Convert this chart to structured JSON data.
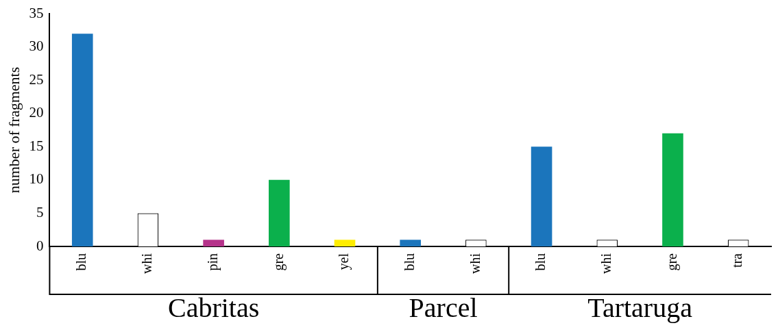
{
  "chart_data": {
    "type": "bar",
    "ylabel": "number of fragments",
    "categories": [
      "blu",
      "whi",
      "pin",
      "gre",
      "yel",
      "blu",
      "whi",
      "blu",
      "whi",
      "gre",
      "tra"
    ],
    "values": [
      32,
      5,
      1,
      10,
      1,
      1,
      1,
      15,
      1,
      17,
      1
    ],
    "colors": [
      "#1b75bc",
      "#ffffff",
      "#b5338a",
      "#0bb04c",
      "#ffed00",
      "#1b75bc",
      "#ffffff",
      "#1b75bc",
      "#ffffff",
      "#0bb04c",
      "#ffffff"
    ],
    "ylim": [
      0,
      35
    ],
    "yticks": [
      0,
      5,
      10,
      15,
      20,
      25,
      30,
      35
    ],
    "grid": false,
    "legend": false,
    "annotations": [
      "Cabritas",
      "Parcel",
      "Tartaruga"
    ]
  }
}
